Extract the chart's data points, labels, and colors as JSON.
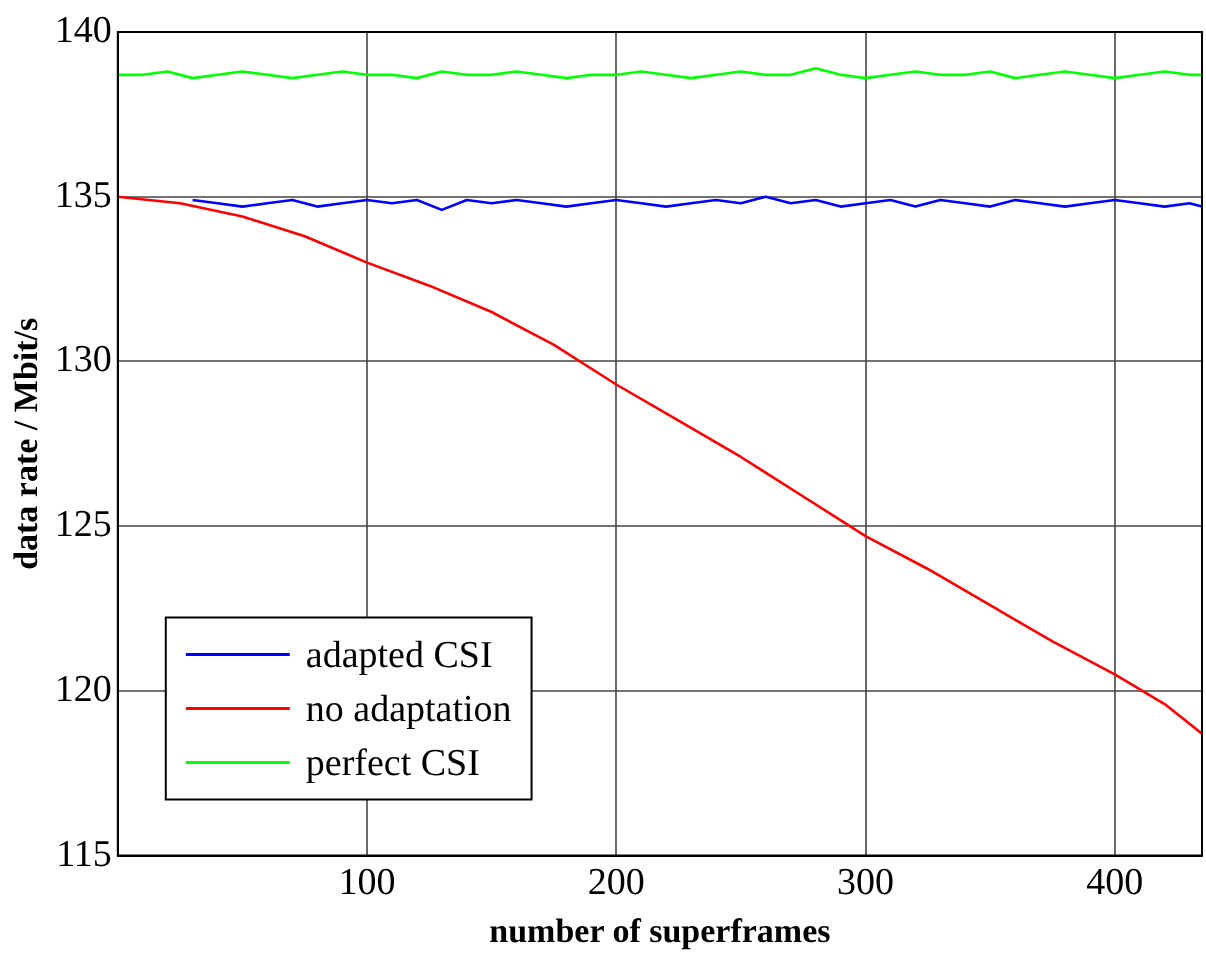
{
  "chart_data": {
    "type": "line",
    "xlabel": "number of superframes",
    "ylabel": "data rate / Mbit/s",
    "xlim": [
      0,
      435
    ],
    "xticks": [
      100,
      200,
      300,
      400
    ],
    "ylim": [
      115,
      140
    ],
    "yticks": [
      115,
      120,
      125,
      130,
      135,
      140
    ],
    "grid": true,
    "legend": "bottom left",
    "marker": "none",
    "line_style": "solid",
    "series": [
      {
        "name": "adapted CSI",
        "color": "#0000ff",
        "x": [
          30,
          40,
          50,
          60,
          70,
          80,
          90,
          100,
          110,
          120,
          130,
          140,
          150,
          160,
          170,
          180,
          190,
          200,
          210,
          220,
          230,
          240,
          250,
          260,
          270,
          280,
          290,
          300,
          310,
          320,
          330,
          340,
          350,
          360,
          370,
          380,
          390,
          400,
          410,
          420,
          430,
          435
        ],
        "values": [
          134.9,
          134.8,
          134.7,
          134.8,
          134.9,
          134.7,
          134.8,
          134.9,
          134.8,
          134.9,
          134.6,
          134.9,
          134.8,
          134.9,
          134.8,
          134.7,
          134.8,
          134.9,
          134.8,
          134.7,
          134.8,
          134.9,
          134.8,
          135.0,
          134.8,
          134.9,
          134.7,
          134.8,
          134.9,
          134.7,
          134.9,
          134.8,
          134.7,
          134.9,
          134.8,
          134.7,
          134.8,
          134.9,
          134.8,
          134.7,
          134.8,
          134.7
        ]
      },
      {
        "name": "no adaptation",
        "color": "#ff0000",
        "x": [
          0,
          25,
          50,
          75,
          100,
          125,
          150,
          175,
          200,
          225,
          250,
          275,
          300,
          325,
          350,
          375,
          400,
          420,
          435
        ],
        "values": [
          135.0,
          134.8,
          134.4,
          133.8,
          133.0,
          132.3,
          131.5,
          130.5,
          129.3,
          128.2,
          127.1,
          125.9,
          124.7,
          123.7,
          122.6,
          121.5,
          120.5,
          119.6,
          118.7
        ]
      },
      {
        "name": "perfect CSI",
        "color": "#00ff00",
        "x": [
          0,
          10,
          20,
          30,
          40,
          50,
          60,
          70,
          80,
          90,
          100,
          110,
          120,
          130,
          140,
          150,
          160,
          170,
          180,
          190,
          200,
          210,
          220,
          230,
          240,
          250,
          260,
          270,
          280,
          290,
          300,
          310,
          320,
          330,
          340,
          350,
          360,
          370,
          380,
          390,
          400,
          410,
          420,
          430,
          435
        ],
        "values": [
          138.7,
          138.7,
          138.8,
          138.6,
          138.7,
          138.8,
          138.7,
          138.6,
          138.7,
          138.8,
          138.7,
          138.7,
          138.6,
          138.8,
          138.7,
          138.7,
          138.8,
          138.7,
          138.6,
          138.7,
          138.7,
          138.8,
          138.7,
          138.6,
          138.7,
          138.8,
          138.7,
          138.7,
          138.9,
          138.7,
          138.6,
          138.7,
          138.8,
          138.7,
          138.7,
          138.8,
          138.6,
          138.7,
          138.8,
          138.7,
          138.6,
          138.7,
          138.8,
          138.7,
          138.7
        ]
      }
    ]
  }
}
